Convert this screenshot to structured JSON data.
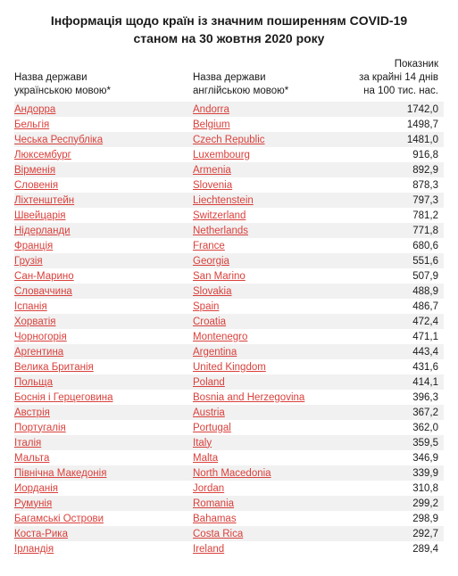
{
  "title_line1": "Інформація щодо країн із значним поширенням COVID-19",
  "title_line2": "станом на 30 жовтня 2020 року",
  "headers": {
    "col1_line1": "Назва держави",
    "col1_line2": "українською мовою*",
    "col2_line1": "Назва держави",
    "col2_line2": "англійською мовою*",
    "col3_line1": "Показник",
    "col3_line2": "за крайні 14 днів",
    "col3_line3": "на 100 тис. нас."
  },
  "colors": {
    "link": "#d9413c",
    "text": "#1a1a1a",
    "row_odd": "#f1f1f1",
    "row_even": "#ffffff"
  },
  "rows": [
    {
      "ua": "Андорра",
      "en": "Andorra",
      "val": "1742,0"
    },
    {
      "ua": "Бельгія",
      "en": "Belgium",
      "val": "1498,7"
    },
    {
      "ua": "Чеська Республіка",
      "en": "Czech Republic",
      "val": "1481,0"
    },
    {
      "ua": "Люксембург",
      "en": "Luxembourg",
      "val": "916,8"
    },
    {
      "ua": "Вірменія",
      "en": "Armenia",
      "val": "892,9"
    },
    {
      "ua": "Словенія",
      "en": "Slovenia",
      "val": "878,3"
    },
    {
      "ua": "Ліхтенштейн",
      "en": "Liechtenstein",
      "val": "797,3"
    },
    {
      "ua": "Швейцарія",
      "en": "Switzerland",
      "val": "781,2"
    },
    {
      "ua": "Нідерланди",
      "en": "Netherlands",
      "val": "771,8"
    },
    {
      "ua": "Франція",
      "en": "France",
      "val": "680,6"
    },
    {
      "ua": "Грузія",
      "en": "Georgia",
      "val": "551,6"
    },
    {
      "ua": "Сан-Марино",
      "en": "San Marino",
      "val": "507,9"
    },
    {
      "ua": "Словаччина",
      "en": "Slovakia",
      "val": "488,9"
    },
    {
      "ua": "Іспанія",
      "en": "Spain",
      "val": "486,7"
    },
    {
      "ua": "Хорватія",
      "en": "Croatia",
      "val": "472,4"
    },
    {
      "ua": "Чорногорія",
      "en": "Montenegro",
      "val": "471,1"
    },
    {
      "ua": "Аргентина",
      "en": "Argentina",
      "val": "443,4"
    },
    {
      "ua": "Велика Британія",
      "en": "United Kingdom",
      "val": "431,6"
    },
    {
      "ua": "Польща",
      "en": "Poland",
      "val": "414,1"
    },
    {
      "ua": "Боснія і Герцеговина",
      "en": "Bosnia and Herzegovina",
      "val": "396,3"
    },
    {
      "ua": "Австрія",
      "en": "Austria",
      "val": "367,2"
    },
    {
      "ua": "Португалія",
      "en": "Portugal",
      "val": "362,0"
    },
    {
      "ua": "Італія",
      "en": "Italy",
      "val": "359,5"
    },
    {
      "ua": "Мальта",
      "en": "Malta",
      "val": "346,9"
    },
    {
      "ua": "Північна Македонія",
      "en": "North Macedonia",
      "val": "339,9"
    },
    {
      "ua": "Йорданія",
      "en": "Jordan",
      "val": "310,8"
    },
    {
      "ua": "Румунія",
      "en": "Romania",
      "val": "299,2"
    },
    {
      "ua": "Багамські Острови",
      "en": "Bahamas",
      "val": "298,9"
    },
    {
      "ua": "Коста-Рика",
      "en": "Costa Rica",
      "val": "292,7"
    },
    {
      "ua": "Ірландія",
      "en": "Ireland",
      "val": "289,4"
    }
  ]
}
